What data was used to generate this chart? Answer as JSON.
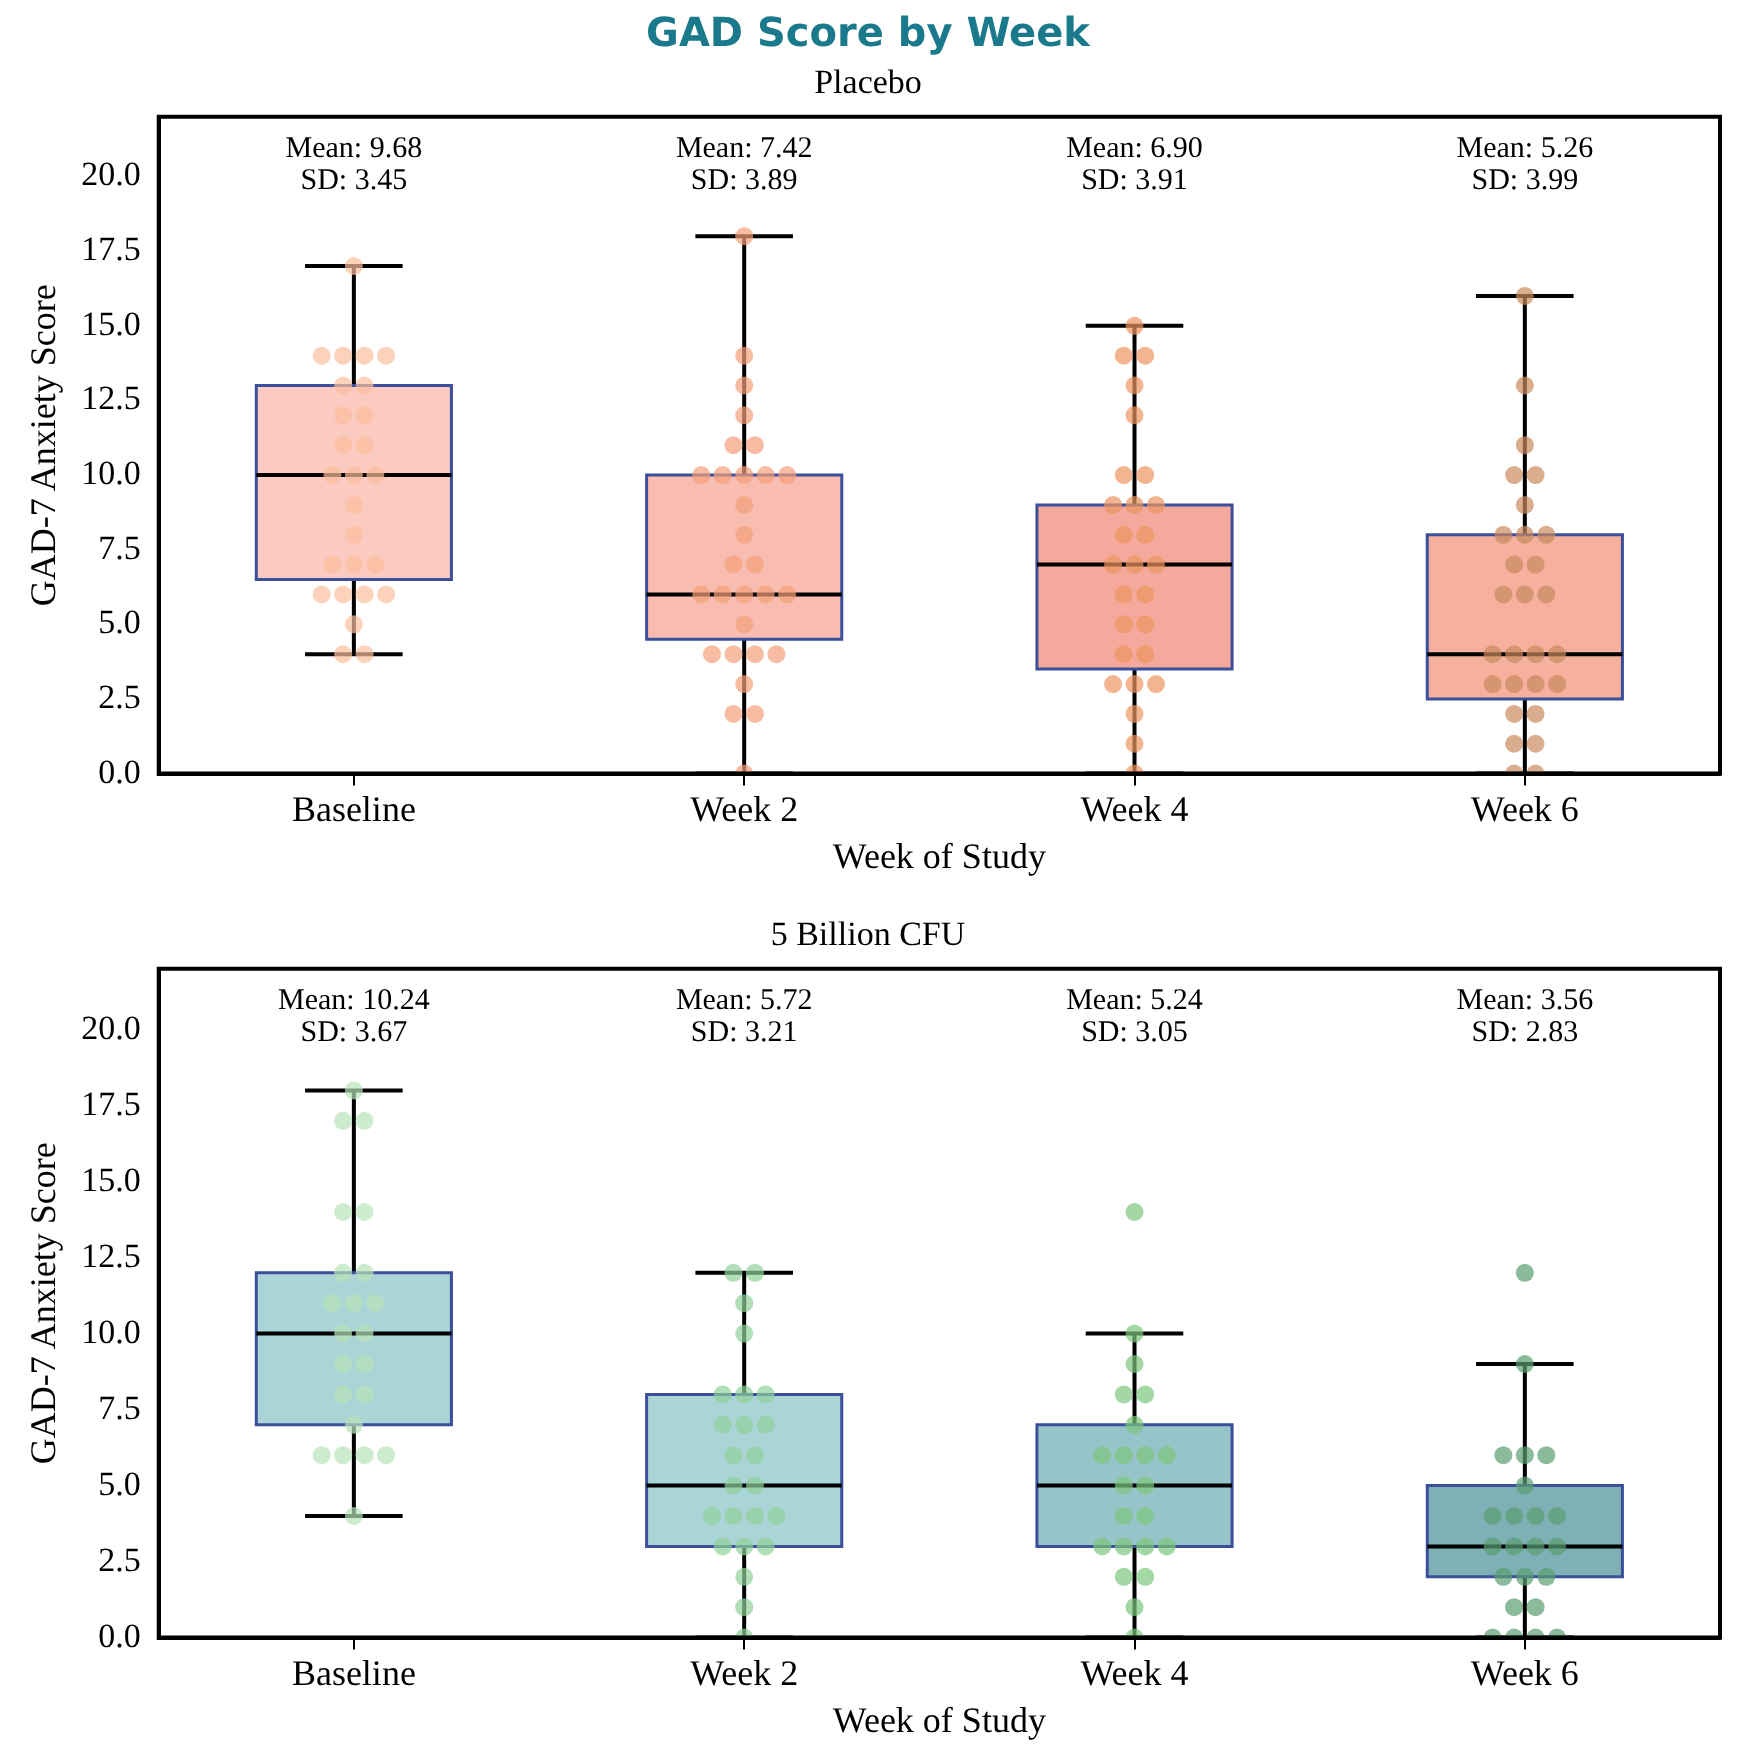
{
  "chart_data": [
    {
      "type": "box",
      "title": "GAD Score by Week",
      "subtitle": "Placebo",
      "categories": [
        "Baseline",
        "Week 2",
        "Week 4",
        "Week 6"
      ],
      "xlabel": "Week of Study",
      "ylabel": "GAD-7 Anxiety Score",
      "ylim": [
        0,
        22
      ],
      "yticks": [
        {
          "value": 0,
          "label": "0.0"
        },
        {
          "value": 2.5,
          "label": "2.5"
        },
        {
          "value": 5,
          "label": "5.0"
        },
        {
          "value": 7.5,
          "label": "7.5"
        },
        {
          "value": 10,
          "label": "10.0"
        },
        {
          "value": 12.5,
          "label": "12.5"
        },
        {
          "value": 15,
          "label": "15.0"
        },
        {
          "value": 17.5,
          "label": "17.5"
        },
        {
          "value": 20,
          "label": "20.0"
        }
      ],
      "grid": false,
      "legend": false,
      "marker": "circle",
      "series": [
        {
          "colors": [
            "#fbcac0",
            "#f8bdb0",
            "#f5a89c",
            "#f5b09e"
          ],
          "boxes": [
            {
              "low": 4,
              "q1": 6.5,
              "median": 10,
              "q3": 13,
              "high": 17
            },
            {
              "low": 0,
              "q1": 4.5,
              "median": 6,
              "q3": 10,
              "high": 18
            },
            {
              "low": 0,
              "q1": 3.5,
              "median": 7,
              "q3": 9,
              "high": 15
            },
            {
              "low": 0,
              "q1": 2.5,
              "median": 4,
              "q3": 8,
              "high": 16
            }
          ]
        },
        {
          "type": "scatter",
          "color": "#fcbf9e",
          "x": [
            "Baseline",
            "Baseline",
            "Baseline",
            "Baseline",
            "Baseline",
            "Baseline",
            "Baseline",
            "Baseline",
            "Baseline",
            "Baseline",
            "Baseline",
            "Baseline",
            "Baseline",
            "Baseline",
            "Baseline",
            "Baseline",
            "Baseline",
            "Baseline",
            "Baseline",
            "Baseline",
            "Baseline",
            "Baseline",
            "Baseline",
            "Baseline",
            "Baseline",
            "Baseline"
          ],
          "values": [
            17,
            14,
            14,
            14,
            14,
            13,
            13,
            12,
            12,
            11,
            11,
            10,
            10,
            10,
            9,
            8,
            7,
            7,
            7,
            6,
            6,
            6,
            6,
            5,
            4,
            4
          ]
        },
        {
          "type": "scatter",
          "color": "#f4a07a",
          "x": [
            "Week 2",
            "Week 2",
            "Week 2",
            "Week 2",
            "Week 2",
            "Week 2",
            "Week 2",
            "Week 2",
            "Week 2",
            "Week 2",
            "Week 2",
            "Week 2",
            "Week 2",
            "Week 2",
            "Week 2",
            "Week 2",
            "Week 2",
            "Week 2",
            "Week 2",
            "Week 2",
            "Week 2",
            "Week 2",
            "Week 2",
            "Week 2",
            "Week 2",
            "Week 2",
            "Week 2",
            "Week 2",
            "Week 2"
          ],
          "values": [
            18,
            14,
            13,
            12,
            11,
            11,
            10,
            10,
            10,
            10,
            10,
            9,
            8,
            7,
            7,
            6,
            6,
            6,
            6,
            6,
            5,
            4,
            4,
            4,
            4,
            3,
            2,
            2,
            0
          ]
        },
        {
          "type": "scatter",
          "color": "#ec9560",
          "x": [
            "Week 4",
            "Week 4",
            "Week 4",
            "Week 4",
            "Week 4",
            "Week 4",
            "Week 4",
            "Week 4",
            "Week 4",
            "Week 4",
            "Week 4",
            "Week 4",
            "Week 4",
            "Week 4",
            "Week 4",
            "Week 4",
            "Week 4",
            "Week 4",
            "Week 4",
            "Week 4",
            "Week 4",
            "Week 4",
            "Week 4",
            "Week 4",
            "Week 4",
            "Week 4",
            "Week 4"
          ],
          "values": [
            15,
            14,
            14,
            13,
            12,
            10,
            10,
            9,
            9,
            9,
            8,
            8,
            7,
            7,
            7,
            6,
            6,
            5,
            5,
            4,
            4,
            3,
            3,
            3,
            2,
            1,
            0
          ]
        },
        {
          "type": "scatter",
          "color": "#c98a5e",
          "x": [
            "Week 6",
            "Week 6",
            "Week 6",
            "Week 6",
            "Week 6",
            "Week 6",
            "Week 6",
            "Week 6",
            "Week 6",
            "Week 6",
            "Week 6",
            "Week 6",
            "Week 6",
            "Week 6",
            "Week 6",
            "Week 6",
            "Week 6",
            "Week 6",
            "Week 6",
            "Week 6",
            "Week 6",
            "Week 6",
            "Week 6",
            "Week 6",
            "Week 6",
            "Week 6",
            "Week 6",
            "Week 6"
          ],
          "values": [
            16,
            13,
            11,
            10,
            10,
            9,
            8,
            8,
            8,
            7,
            7,
            6,
            6,
            6,
            4,
            4,
            4,
            4,
            3,
            3,
            3,
            3,
            2,
            2,
            1,
            1,
            0,
            0
          ]
        }
      ],
      "annotations": [
        "Mean: 9.68\nSD: 3.45",
        "Mean: 7.42\nSD: 3.89",
        "Mean: 6.90\nSD: 3.91",
        "Mean: 5.26\nSD: 3.99"
      ]
    },
    {
      "type": "box",
      "title": "5 Billion CFU",
      "categories": [
        "Baseline",
        "Week 2",
        "Week 4",
        "Week 6"
      ],
      "xlabel": "Week of Study",
      "ylabel": "GAD-7 Anxiety Score",
      "ylim": [
        0,
        22
      ],
      "yticks": [
        {
          "value": 0,
          "label": "0.0"
        },
        {
          "value": 2.5,
          "label": "2.5"
        },
        {
          "value": 5,
          "label": "5.0"
        },
        {
          "value": 7.5,
          "label": "7.5"
        },
        {
          "value": 10,
          "label": "10.0"
        },
        {
          "value": 12.5,
          "label": "12.5"
        },
        {
          "value": 15,
          "label": "15.0"
        },
        {
          "value": 17.5,
          "label": "17.5"
        },
        {
          "value": 20,
          "label": "20.0"
        }
      ],
      "grid": false,
      "legend": false,
      "marker": "circle",
      "series": [
        {
          "colors": [
            "#abd4d6",
            "#abd4d6",
            "#96c4c9",
            "#7fb0b6"
          ],
          "boxes": [
            {
              "low": 4,
              "q1": 7,
              "median": 10,
              "q3": 12,
              "high": 18
            },
            {
              "low": 0,
              "q1": 3,
              "median": 5,
              "q3": 8,
              "high": 12
            },
            {
              "low": 0,
              "q1": 3,
              "median": 5,
              "q3": 7,
              "high": 10
            },
            {
              "low": 0,
              "q1": 2,
              "median": 3,
              "q3": 5,
              "high": 9
            }
          ]
        },
        {
          "type": "scatter",
          "color": "#b8e3b8",
          "x": [
            "Baseline",
            "Baseline",
            "Baseline",
            "Baseline",
            "Baseline",
            "Baseline",
            "Baseline",
            "Baseline",
            "Baseline",
            "Baseline",
            "Baseline",
            "Baseline",
            "Baseline",
            "Baseline",
            "Baseline",
            "Baseline",
            "Baseline",
            "Baseline",
            "Baseline",
            "Baseline",
            "Baseline",
            "Baseline"
          ],
          "values": [
            18,
            17,
            17,
            14,
            14,
            12,
            12,
            11,
            11,
            11,
            10,
            10,
            9,
            9,
            8,
            8,
            7,
            6,
            6,
            6,
            6,
            4
          ]
        },
        {
          "type": "scatter",
          "color": "#8fd19a",
          "x": [
            "Week 2",
            "Week 2",
            "Week 2",
            "Week 2",
            "Week 2",
            "Week 2",
            "Week 2",
            "Week 2",
            "Week 2",
            "Week 2",
            "Week 2",
            "Week 2",
            "Week 2",
            "Week 2",
            "Week 2",
            "Week 2",
            "Week 2",
            "Week 2",
            "Week 2",
            "Week 2",
            "Week 2",
            "Week 2",
            "Week 2",
            "Week 2"
          ],
          "values": [
            12,
            12,
            11,
            10,
            8,
            8,
            8,
            7,
            7,
            7,
            6,
            6,
            5,
            5,
            4,
            4,
            4,
            4,
            3,
            3,
            3,
            2,
            1,
            0
          ]
        },
        {
          "type": "scatter",
          "color": "#7cc67c",
          "x": [
            "Week 4",
            "Week 4",
            "Week 4",
            "Week 4",
            "Week 4",
            "Week 4",
            "Week 4",
            "Week 4",
            "Week 4",
            "Week 4",
            "Week 4",
            "Week 4",
            "Week 4",
            "Week 4",
            "Week 4",
            "Week 4",
            "Week 4",
            "Week 4",
            "Week 4",
            "Week 4",
            "Week 4",
            "Week 4"
          ],
          "values": [
            14,
            10,
            9,
            8,
            8,
            7,
            6,
            6,
            6,
            6,
            5,
            5,
            4,
            4,
            3,
            3,
            3,
            3,
            2,
            2,
            1,
            0
          ]
        },
        {
          "type": "scatter",
          "color": "#5a9e70",
          "x": [
            "Week 6",
            "Week 6",
            "Week 6",
            "Week 6",
            "Week 6",
            "Week 6",
            "Week 6",
            "Week 6",
            "Week 6",
            "Week 6",
            "Week 6",
            "Week 6",
            "Week 6",
            "Week 6",
            "Week 6",
            "Week 6",
            "Week 6",
            "Week 6",
            "Week 6",
            "Week 6",
            "Week 6",
            "Week 6",
            "Week 6"
          ],
          "values": [
            12,
            9,
            6,
            6,
            6,
            5,
            4,
            4,
            4,
            4,
            3,
            3,
            3,
            3,
            2,
            2,
            2,
            1,
            1,
            0,
            0,
            0,
            0
          ]
        }
      ],
      "annotations": [
        "Mean: 10.24\nSD: 3.67",
        "Mean: 5.72\nSD: 3.21",
        "Mean: 5.24\nSD: 3.05",
        "Mean: 3.56\nSD: 2.83"
      ]
    }
  ]
}
